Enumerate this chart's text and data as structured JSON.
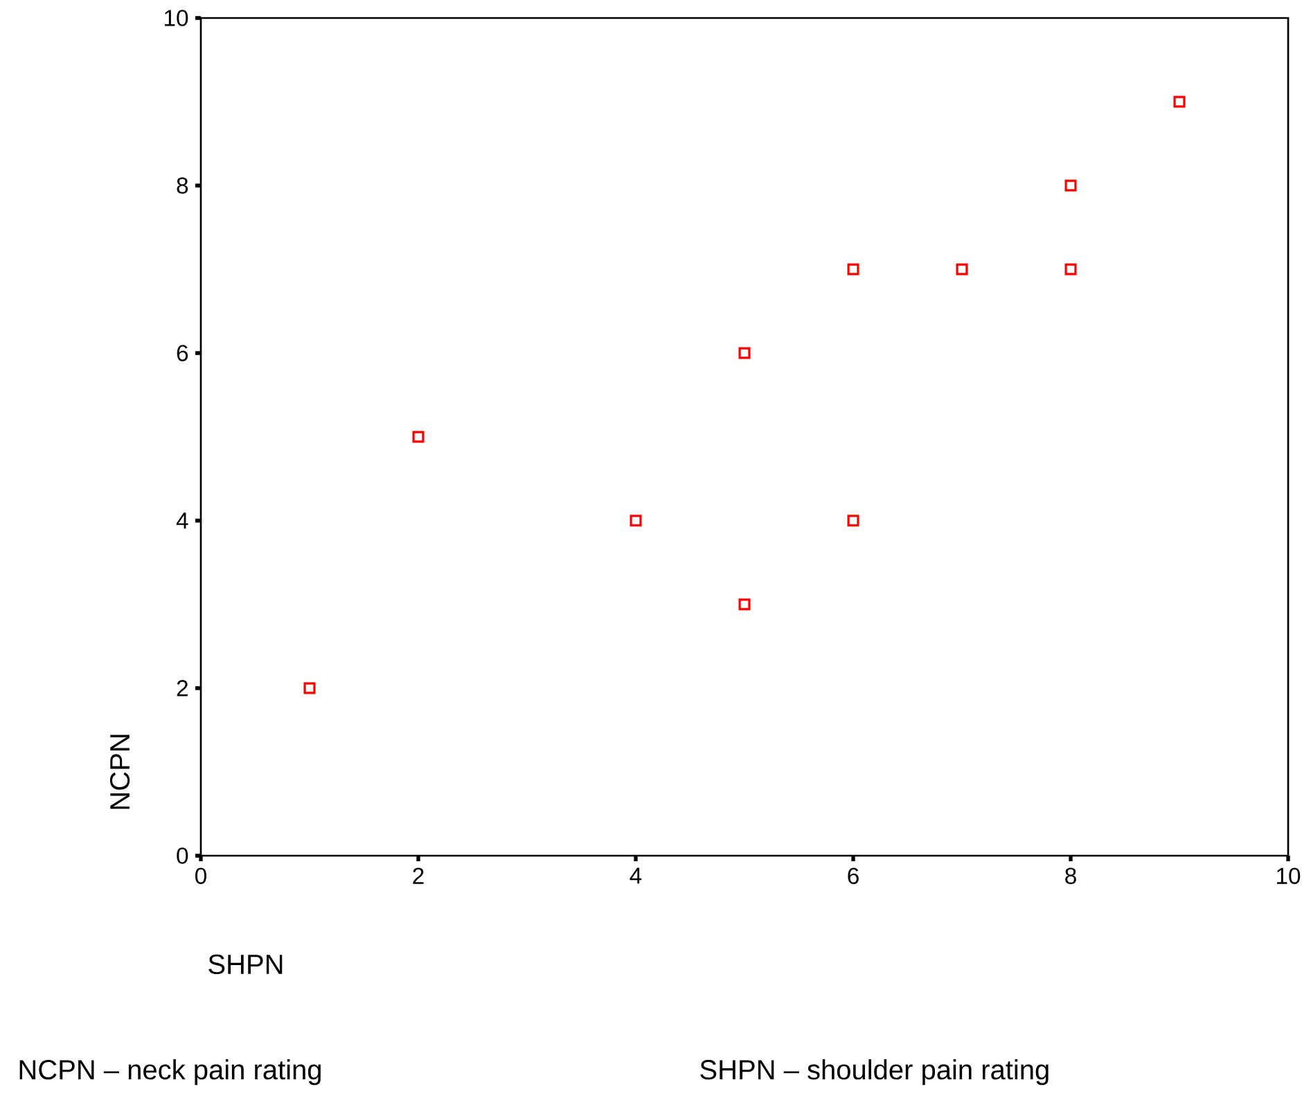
{
  "chart_data": {
    "type": "scatter",
    "xlabel": "SHPN",
    "ylabel": "NCPN",
    "annotations": [
      "NCPN – neck pain rating",
      "SHPN – shoulder pain rating"
    ],
    "x": [
      1,
      2,
      4,
      5,
      5,
      6,
      6,
      7,
      8,
      8,
      9
    ],
    "series": [
      {
        "color": "#ff0000",
        "values": [
          2,
          5,
          4,
          6,
          3,
          7,
          4,
          7,
          8,
          7,
          9
        ]
      }
    ],
    "xlim": [
      0,
      10
    ],
    "ylim": [
      0,
      10
    ],
    "xticks": [
      0,
      2,
      4,
      6,
      8,
      10
    ],
    "yticks": [
      0,
      2,
      4,
      6,
      8,
      10
    ],
    "marker": "square",
    "grid": false
  }
}
